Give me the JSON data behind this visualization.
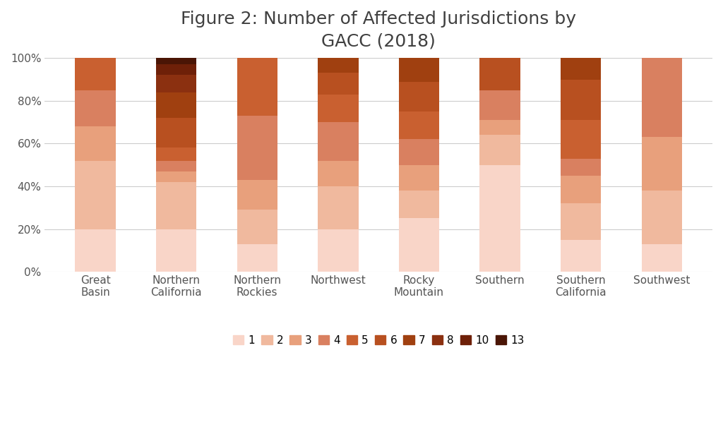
{
  "title": "Figure 2: Number of Affected Jurisdictions by\nGACC (2018)",
  "categories": [
    "Great\nBasin",
    "Northern\nCalifornia",
    "Northern\nRockies",
    "Northwest",
    "Rocky\nMountain",
    "Southern",
    "Southern\nCalifornia",
    "Southwest"
  ],
  "legend_labels": [
    "1",
    "2",
    "3",
    "4",
    "5",
    "6",
    "7",
    "8",
    "10",
    "13"
  ],
  "colors": [
    "#f9d5c8",
    "#f0b99e",
    "#e8a07c",
    "#d98060",
    "#c96030",
    "#b85020",
    "#a04010",
    "#8b3010",
    "#6e2008",
    "#4a1505"
  ],
  "bar_data": {
    "Great\nBasin": [
      0.2,
      0.32,
      0.16,
      0.17,
      0.15,
      0.0,
      0.0,
      0.0,
      0.0,
      0.0
    ],
    "Northern\nCalifornia": [
      0.2,
      0.22,
      0.05,
      0.05,
      0.06,
      0.14,
      0.12,
      0.08,
      0.05,
      0.03
    ],
    "Northern\nRockies": [
      0.13,
      0.16,
      0.14,
      0.3,
      0.27,
      0.0,
      0.0,
      0.0,
      0.0,
      0.0
    ],
    "Northwest": [
      0.2,
      0.2,
      0.12,
      0.18,
      0.13,
      0.1,
      0.07,
      0.0,
      0.0,
      0.0
    ],
    "Rocky\nMountain": [
      0.25,
      0.13,
      0.12,
      0.12,
      0.13,
      0.14,
      0.11,
      0.0,
      0.0,
      0.0
    ],
    "Southern": [
      0.5,
      0.14,
      0.07,
      0.14,
      0.0,
      0.15,
      0.0,
      0.0,
      0.0,
      0.0
    ],
    "Southern\nCalifornia": [
      0.15,
      0.17,
      0.13,
      0.08,
      0.18,
      0.19,
      0.1,
      0.0,
      0.0,
      0.0
    ],
    "Southwest": [
      0.13,
      0.25,
      0.25,
      0.37,
      0.0,
      0.0,
      0.0,
      0.0,
      0.0,
      0.0
    ]
  },
  "ylim": [
    0,
    1.0
  ],
  "ytick_labels": [
    "0%",
    "20%",
    "40%",
    "60%",
    "80%",
    "100%"
  ],
  "ytick_values": [
    0,
    0.2,
    0.4,
    0.6,
    0.8,
    1.0
  ],
  "background_color": "#ffffff",
  "title_fontsize": 18,
  "tick_fontsize": 11,
  "legend_fontsize": 11,
  "bar_width": 0.5
}
